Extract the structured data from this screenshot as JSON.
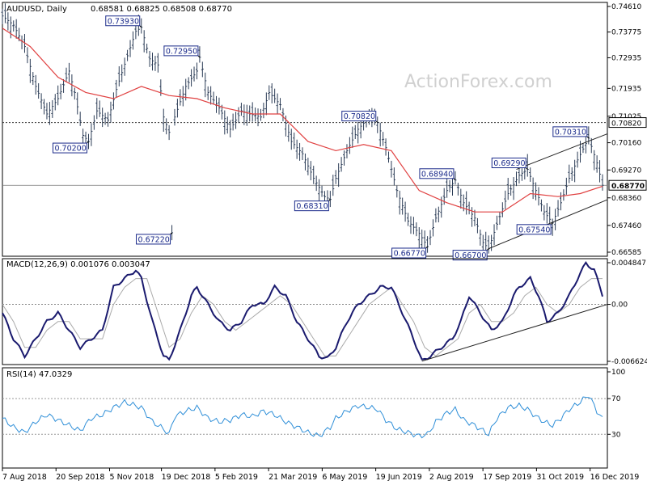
{
  "chart_data": [
    {
      "type": "candlestick",
      "title": "AUDUSD, Daily",
      "ohlc_header": "0.68581  0.68825  0.68508  0.68770",
      "watermark": "ActionForex.com",
      "y_ticks": [
        "0.74610",
        "0.73775",
        "0.72935",
        "0.71935",
        "0.71025",
        "0.70160",
        "0.69270",
        "0.68360",
        "0.67460",
        "0.66585"
      ],
      "y_range": [
        0.66585,
        0.7461
      ],
      "last_price": "0.68770",
      "level_label": "0.70820",
      "level": 0.7082,
      "annotations": [
        "0.73930",
        "0.72950",
        "0.70200",
        "0.67220",
        "0.70820",
        "0.68310",
        "0.66770",
        "0.66700",
        "0.68940",
        "0.69290",
        "0.70310",
        "0.67540"
      ],
      "price_points": [
        [
          0,
          0.743
        ],
        [
          4,
          0.74
        ],
        [
          8,
          0.733
        ],
        [
          12,
          0.72
        ],
        [
          16,
          0.711
        ],
        [
          20,
          0.716
        ],
        [
          24,
          0.725
        ],
        [
          26,
          0.718
        ],
        [
          29,
          0.704
        ],
        [
          31,
          0.702
        ],
        [
          34,
          0.712
        ],
        [
          38,
          0.709
        ],
        [
          41,
          0.719
        ],
        [
          45,
          0.73
        ],
        [
          48,
          0.738
        ],
        [
          50,
          0.7393
        ],
        [
          53,
          0.729
        ],
        [
          56,
          0.727
        ],
        [
          58,
          0.71
        ],
        [
          60,
          0.705
        ],
        [
          61,
          0.6722
        ],
        [
          62,
          0.71
        ],
        [
          66,
          0.72
        ],
        [
          70,
          0.725
        ],
        [
          71,
          0.7295
        ],
        [
          74,
          0.718
        ],
        [
          78,
          0.713
        ],
        [
          82,
          0.706
        ],
        [
          86,
          0.712
        ],
        [
          89,
          0.711
        ],
        [
          93,
          0.71
        ],
        [
          96,
          0.718
        ],
        [
          100,
          0.714
        ],
        [
          104,
          0.702
        ],
        [
          108,
          0.698
        ],
        [
          112,
          0.69
        ],
        [
          116,
          0.684
        ],
        [
          118,
          0.6831
        ],
        [
          120,
          0.69
        ],
        [
          124,
          0.699
        ],
        [
          128,
          0.706
        ],
        [
          132,
          0.71
        ],
        [
          135,
          0.7082
        ],
        [
          138,
          0.7
        ],
        [
          142,
          0.686
        ],
        [
          146,
          0.676
        ],
        [
          150,
          0.672
        ],
        [
          153,
          0.6677
        ],
        [
          156,
          0.677
        ],
        [
          160,
          0.686
        ],
        [
          163,
          0.6894
        ],
        [
          166,
          0.682
        ],
        [
          170,
          0.677
        ],
        [
          173,
          0.669
        ],
        [
          175,
          0.667
        ],
        [
          178,
          0.675
        ],
        [
          182,
          0.685
        ],
        [
          186,
          0.691
        ],
        [
          189,
          0.6929
        ],
        [
          192,
          0.686
        ],
        [
          195,
          0.679
        ],
        [
          198,
          0.6754
        ],
        [
          201,
          0.682
        ],
        [
          204,
          0.69
        ],
        [
          207,
          0.696
        ],
        [
          211,
          0.7031
        ],
        [
          214,
          0.695
        ],
        [
          216,
          0.6877
        ]
      ],
      "ma_points": [
        [
          0,
          0.739
        ],
        [
          10,
          0.733
        ],
        [
          20,
          0.723
        ],
        [
          30,
          0.718
        ],
        [
          40,
          0.716
        ],
        [
          50,
          0.72
        ],
        [
          60,
          0.717
        ],
        [
          70,
          0.716
        ],
        [
          80,
          0.713
        ],
        [
          90,
          0.711
        ],
        [
          100,
          0.711
        ],
        [
          110,
          0.702
        ],
        [
          120,
          0.699
        ],
        [
          130,
          0.701
        ],
        [
          140,
          0.699
        ],
        [
          150,
          0.686
        ],
        [
          160,
          0.682
        ],
        [
          170,
          0.679
        ],
        [
          180,
          0.679
        ],
        [
          190,
          0.685
        ],
        [
          200,
          0.684
        ],
        [
          208,
          0.685
        ],
        [
          216,
          0.6874
        ]
      ]
    },
    {
      "type": "line",
      "title": "MACD(12,26,9) 0.001076 0.003047",
      "y_ticks": [
        "0.004847",
        "0.00",
        "-0.006624"
      ],
      "y_range": [
        -0.006624,
        0.004847
      ],
      "macd_points": [
        [
          0,
          -0.001
        ],
        [
          4,
          -0.004
        ],
        [
          8,
          -0.006
        ],
        [
          12,
          -0.004
        ],
        [
          16,
          -0.002
        ],
        [
          20,
          -0.001
        ],
        [
          24,
          -0.003
        ],
        [
          28,
          -0.005
        ],
        [
          32,
          -0.004
        ],
        [
          36,
          -0.003
        ],
        [
          40,
          0.002
        ],
        [
          44,
          0.003
        ],
        [
          48,
          0.004
        ],
        [
          50,
          0.003
        ],
        [
          54,
          -0.002
        ],
        [
          58,
          -0.006
        ],
        [
          60,
          -0.0065
        ],
        [
          64,
          -0.003
        ],
        [
          68,
          0.001
        ],
        [
          70,
          0.002
        ],
        [
          74,
          0.0
        ],
        [
          78,
          -0.002
        ],
        [
          82,
          -0.003
        ],
        [
          86,
          -0.002
        ],
        [
          90,
          0.0
        ],
        [
          94,
          0.0
        ],
        [
          98,
          0.002
        ],
        [
          102,
          0.001
        ],
        [
          106,
          -0.002
        ],
        [
          110,
          -0.004
        ],
        [
          114,
          -0.006
        ],
        [
          117,
          -0.0063
        ],
        [
          120,
          -0.005
        ],
        [
          124,
          -0.002
        ],
        [
          128,
          0.0
        ],
        [
          132,
          0.001
        ],
        [
          136,
          0.002
        ],
        [
          140,
          0.002
        ],
        [
          144,
          -0.001
        ],
        [
          148,
          -0.004
        ],
        [
          151,
          -0.0066
        ],
        [
          154,
          -0.006
        ],
        [
          158,
          -0.005
        ],
        [
          162,
          -0.004
        ],
        [
          165,
          -0.002
        ],
        [
          168,
          0.001
        ],
        [
          172,
          -0.001
        ],
        [
          176,
          -0.003
        ],
        [
          180,
          -0.002
        ],
        [
          184,
          0.001
        ],
        [
          186,
          0.002
        ],
        [
          190,
          0.003
        ],
        [
          193,
          0.001
        ],
        [
          196,
          -0.002
        ],
        [
          200,
          -0.001
        ],
        [
          204,
          0.001
        ],
        [
          207,
          0.003
        ],
        [
          210,
          0.0048
        ],
        [
          213,
          0.004
        ],
        [
          216,
          0.0011
        ]
      ],
      "signal_points": [
        [
          0,
          0.0
        ],
        [
          4,
          -0.002
        ],
        [
          8,
          -0.005
        ],
        [
          12,
          -0.005
        ],
        [
          16,
          -0.003
        ],
        [
          20,
          -0.002
        ],
        [
          24,
          -0.002
        ],
        [
          28,
          -0.004
        ],
        [
          32,
          -0.004
        ],
        [
          36,
          -0.004
        ],
        [
          40,
          0.0
        ],
        [
          44,
          0.002
        ],
        [
          48,
          0.003
        ],
        [
          52,
          0.003
        ],
        [
          56,
          -0.001
        ],
        [
          60,
          -0.005
        ],
        [
          64,
          -0.004
        ],
        [
          68,
          -0.001
        ],
        [
          72,
          0.001
        ],
        [
          76,
          0.0
        ],
        [
          80,
          -0.002
        ],
        [
          84,
          -0.003
        ],
        [
          88,
          -0.002
        ],
        [
          92,
          -0.001
        ],
        [
          96,
          0.0
        ],
        [
          100,
          0.001
        ],
        [
          104,
          0.0
        ],
        [
          108,
          -0.002
        ],
        [
          112,
          -0.004
        ],
        [
          116,
          -0.006
        ],
        [
          120,
          -0.006
        ],
        [
          124,
          -0.004
        ],
        [
          128,
          -0.002
        ],
        [
          132,
          0.0
        ],
        [
          136,
          0.001
        ],
        [
          140,
          0.002
        ],
        [
          144,
          0.0
        ],
        [
          148,
          -0.002
        ],
        [
          152,
          -0.005
        ],
        [
          156,
          -0.006
        ],
        [
          160,
          -0.005
        ],
        [
          164,
          -0.004
        ],
        [
          168,
          -0.001
        ],
        [
          172,
          0.0
        ],
        [
          176,
          -0.002
        ],
        [
          180,
          -0.002
        ],
        [
          184,
          -0.001
        ],
        [
          188,
          0.001
        ],
        [
          192,
          0.002
        ],
        [
          196,
          0.0
        ],
        [
          200,
          -0.001
        ],
        [
          204,
          0.0
        ],
        [
          208,
          0.002
        ],
        [
          212,
          0.003
        ],
        [
          216,
          0.003
        ]
      ]
    },
    {
      "type": "line",
      "title": "RSI(14) 47.0329",
      "y_ticks": [
        "100",
        "70",
        "30"
      ],
      "y_range": [
        0,
        100
      ],
      "levels": [
        70,
        30
      ],
      "rsi_points": [
        [
          0,
          48
        ],
        [
          4,
          38
        ],
        [
          8,
          32
        ],
        [
          12,
          44
        ],
        [
          16,
          52
        ],
        [
          20,
          46
        ],
        [
          24,
          40
        ],
        [
          28,
          34
        ],
        [
          32,
          48
        ],
        [
          36,
          52
        ],
        [
          40,
          60
        ],
        [
          44,
          66
        ],
        [
          48,
          62
        ],
        [
          50,
          60
        ],
        [
          54,
          44
        ],
        [
          58,
          36
        ],
        [
          60,
          30
        ],
        [
          62,
          50
        ],
        [
          66,
          56
        ],
        [
          70,
          60
        ],
        [
          74,
          48
        ],
        [
          78,
          44
        ],
        [
          82,
          46
        ],
        [
          86,
          52
        ],
        [
          90,
          50
        ],
        [
          94,
          56
        ],
        [
          98,
          52
        ],
        [
          102,
          44
        ],
        [
          106,
          38
        ],
        [
          110,
          32
        ],
        [
          114,
          28
        ],
        [
          118,
          38
        ],
        [
          120,
          48
        ],
        [
          124,
          56
        ],
        [
          128,
          62
        ],
        [
          132,
          60
        ],
        [
          135,
          58
        ],
        [
          138,
          46
        ],
        [
          142,
          36
        ],
        [
          146,
          32
        ],
        [
          150,
          28
        ],
        [
          153,
          30
        ],
        [
          156,
          44
        ],
        [
          160,
          54
        ],
        [
          163,
          58
        ],
        [
          166,
          46
        ],
        [
          170,
          40
        ],
        [
          173,
          34
        ],
        [
          175,
          30
        ],
        [
          178,
          48
        ],
        [
          182,
          60
        ],
        [
          186,
          62
        ],
        [
          189,
          58
        ],
        [
          192,
          50
        ],
        [
          195,
          44
        ],
        [
          198,
          40
        ],
        [
          201,
          48
        ],
        [
          204,
          58
        ],
        [
          207,
          64
        ],
        [
          211,
          74
        ],
        [
          214,
          56
        ],
        [
          216,
          47
        ]
      ]
    }
  ],
  "x_axis_labels": [
    "7 Aug 2018",
    "20 Sep 2018",
    "5 Nov 2018",
    "19 Dec 2018",
    "5 Feb 2019",
    "21 Mar 2019",
    "6 May 2019",
    "19 Jun 2019",
    "2 Aug 2019",
    "17 Sep 2019",
    "31 Oct 2019",
    "16 Dec 2019"
  ],
  "x_label_index": [
    0,
    31,
    62,
    92,
    123,
    154,
    185,
    216,
    247,
    278,
    309,
    340
  ],
  "x_span": [
    0,
    350
  ],
  "trend_lines": {
    "price_channel_upper": [
      [
        185,
        0.6929
      ],
      [
        216,
        0.7045
      ]
    ],
    "price_channel_lower": [
      [
        175,
        0.667
      ],
      [
        216,
        0.683
      ]
    ],
    "macd_support": [
      [
        151,
        -0.0066
      ],
      [
        216,
        0.0
      ]
    ]
  }
}
